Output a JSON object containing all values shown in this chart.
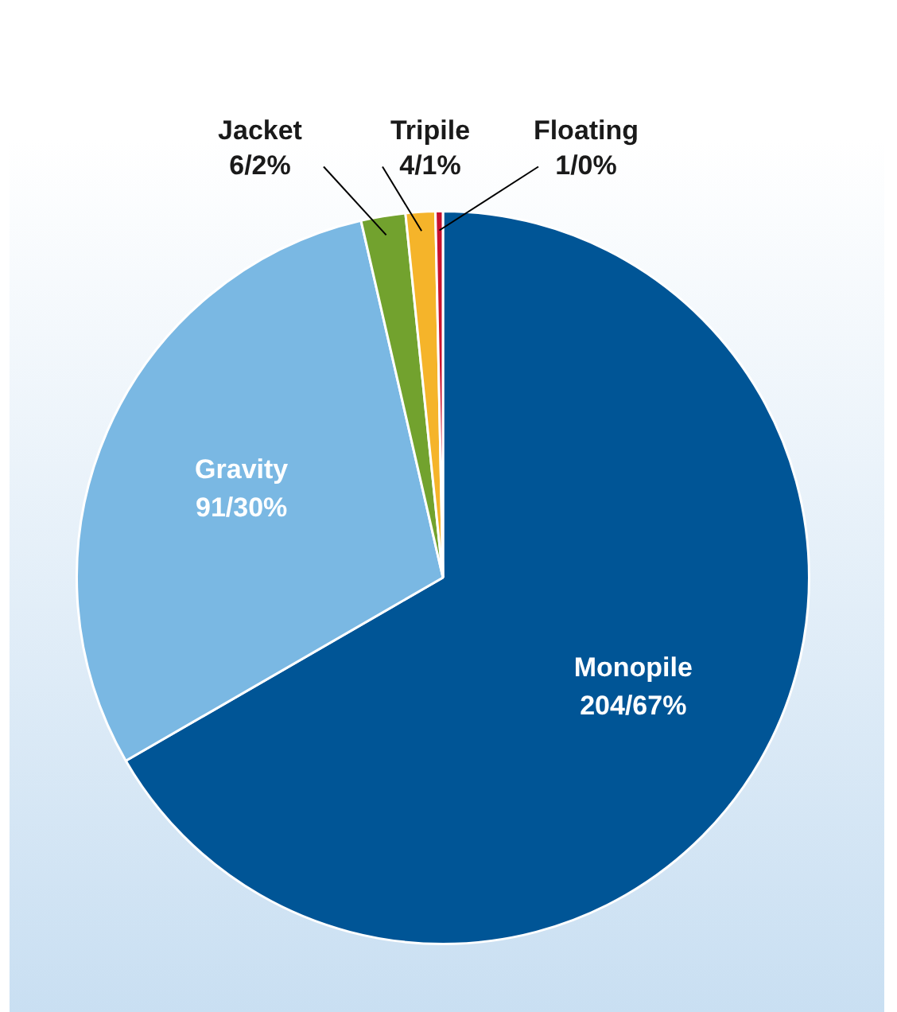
{
  "chart_data": {
    "type": "pie",
    "categories": [
      "Monopile",
      "Gravity",
      "Jacket",
      "Tripile",
      "Floating"
    ],
    "values": [
      204,
      91,
      6,
      4,
      1
    ],
    "value_labels": [
      "204/67%",
      "91/30%",
      "6/2%",
      "4/1%",
      "1/0%"
    ],
    "colors": [
      "#005596",
      "#7ab8e3",
      "#72a22e",
      "#f5b42a",
      "#c8102e"
    ],
    "legend": false
  }
}
